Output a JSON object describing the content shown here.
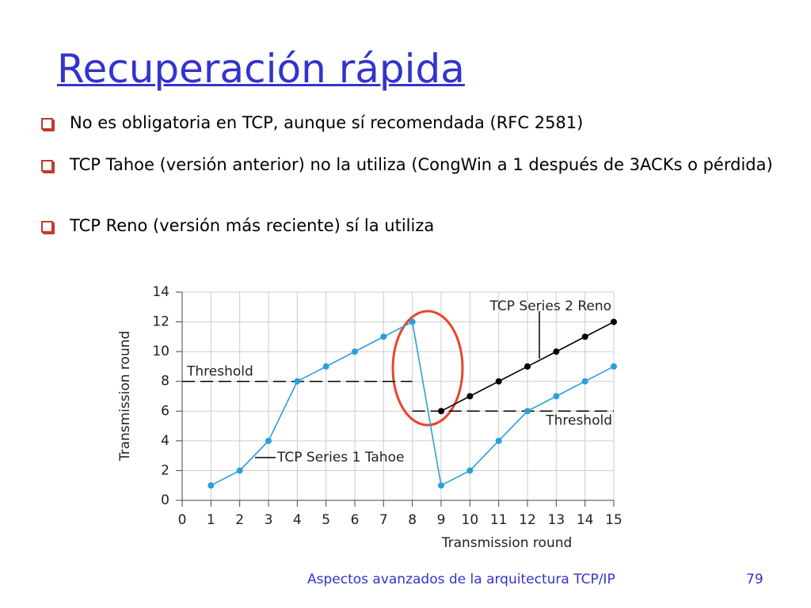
{
  "title": "Recuperación rápida",
  "bullets": [
    "No es obligatoria en TCP, aunque sí recomendada (RFC 2581)",
    "TCP Tahoe (versión anterior) no la utiliza (CongWin a 1 después de 3ACKs o pérdida)",
    "TCP Reno (versión más reciente) sí la utiliza"
  ],
  "chart_data": {
    "type": "line",
    "x_label": "Transmission round",
    "y_label": "Transmission round",
    "x": [
      1,
      2,
      3,
      4,
      5,
      6,
      7,
      8,
      9,
      10,
      11,
      12,
      13,
      14,
      15
    ],
    "series": [
      {
        "name": "TCP Series 1 Tahoe",
        "color": "#2a9fdc",
        "values": [
          1,
          2,
          4,
          8,
          9,
          10,
          11,
          12,
          1,
          2,
          4,
          6,
          7,
          8,
          9
        ]
      },
      {
        "name": "TCP Series 2 Reno",
        "color": "#000000",
        "values": [
          null,
          null,
          null,
          null,
          null,
          null,
          null,
          null,
          6,
          7,
          8,
          9,
          10,
          11,
          12
        ]
      }
    ],
    "thresholds": [
      {
        "label": "Threshold",
        "value": 8,
        "x": [
          0,
          8
        ]
      },
      {
        "label": "Threshold",
        "value": 6,
        "x": [
          8,
          15
        ]
      }
    ],
    "xlim": [
      0,
      15
    ],
    "ylim": [
      0,
      14
    ],
    "xticks": [
      0,
      1,
      2,
      3,
      4,
      5,
      6,
      7,
      8,
      9,
      10,
      11,
      12,
      13,
      14,
      15
    ],
    "yticks": [
      0,
      2,
      4,
      6,
      8,
      10,
      12,
      14
    ],
    "grid": true
  },
  "footer": {
    "text": "Aspectos avanzados de la arquitectura TCP/IP",
    "page": "79"
  }
}
